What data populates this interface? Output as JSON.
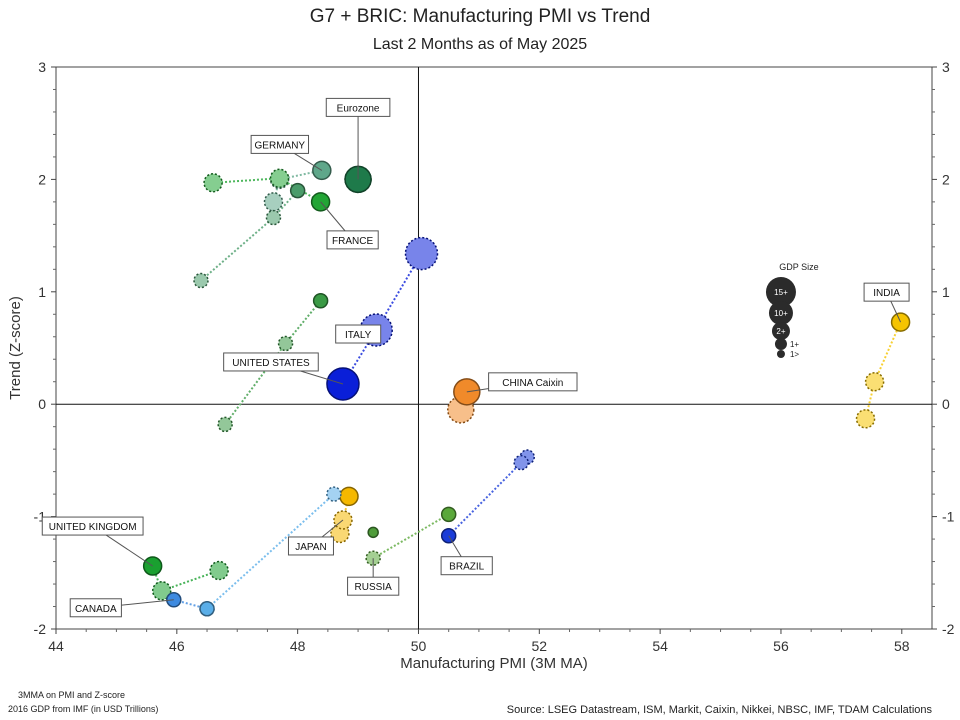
{
  "header": {
    "title": "G7 + BRIC: Manufacturing PMI vs Trend",
    "subtitle": "Last 2 Months as of May 2025"
  },
  "footer": {
    "note1": "3MMA on PMI and Z-score",
    "note2": "2016 GDP from IMF (in USD Trillions)",
    "source": "Source: LSEG Datastream, ISM, Markit, Caixin, Nikkei, NBSC, IMF, TDAM Calculations"
  },
  "chart_data": {
    "type": "scatter",
    "title": "G7 + BRIC: Manufacturing PMI vs Trend",
    "subtitle": "Last 2 Months as of May 2025",
    "xlabel": "Manufacturing PMI (3M MA)",
    "ylabel": "Trend (Z-score)",
    "xlim": [
      44,
      58.5
    ],
    "ylim": [
      -2,
      3
    ],
    "xticks": [
      44,
      46,
      48,
      50,
      52,
      54,
      56,
      58
    ],
    "yticks": [
      -2,
      -1,
      0,
      1,
      2,
      3
    ],
    "reference_lines": {
      "x": 50,
      "y": 0
    },
    "grid": false,
    "size_legend": {
      "title": "GDP Size",
      "entries": [
        "15+",
        "10+",
        "2+",
        "1+",
        "1>"
      ]
    },
    "series": [
      {
        "name": "Eurozone",
        "color": "#1e7a4a",
        "size": "10+",
        "points": [
          [
            49.0,
            2.0
          ],
          [
            49.0,
            2.0
          ]
        ]
      },
      {
        "name": "GERMANY",
        "color": "#5fa78a",
        "size": "2+",
        "points": [
          [
            47.6,
            1.8
          ],
          [
            47.7,
            2.0
          ],
          [
            48.4,
            2.08
          ]
        ]
      },
      {
        "name": "FRANCE",
        "color": "#22a535",
        "size": "2+",
        "points": [
          [
            46.6,
            1.97
          ],
          [
            47.7,
            2.01
          ],
          [
            48.38,
            1.8
          ]
        ]
      },
      {
        "name": "",
        "color": "#4a9c6a",
        "size": "1+",
        "points": [
          [
            46.4,
            1.1
          ],
          [
            47.6,
            1.66
          ],
          [
            48.0,
            1.9
          ]
        ]
      },
      {
        "name": "ITALY",
        "color": "#3a9a45",
        "size": "1+",
        "points": [
          [
            46.8,
            -0.18
          ],
          [
            47.8,
            0.54
          ],
          [
            48.38,
            0.92
          ]
        ]
      },
      {
        "name": "UNITED STATES",
        "color": "#0a1fd8",
        "size": "15+",
        "points": [
          [
            50.05,
            1.34
          ],
          [
            49.3,
            0.66
          ],
          [
            48.75,
            0.18
          ]
        ]
      },
      {
        "name": "CHINA Caixin",
        "color": "#f08a2a",
        "size": "10+",
        "points": [
          [
            50.7,
            -0.05
          ],
          [
            50.8,
            0.11
          ]
        ]
      },
      {
        "name": "INDIA",
        "color": "#f5c400",
        "size": "2+",
        "points": [
          [
            57.4,
            -0.13
          ],
          [
            57.55,
            0.2
          ],
          [
            57.98,
            0.73
          ]
        ]
      },
      {
        "name": "UNITED KINGDOM",
        "color": "#1aa030",
        "size": "2+",
        "points": [
          [
            46.7,
            -1.48
          ],
          [
            45.75,
            -1.66
          ],
          [
            45.6,
            -1.44
          ]
        ]
      },
      {
        "name": "CANADA",
        "color": "#3d8ae0",
        "size": "1+",
        "points": [
          [
            46.5,
            -1.82
          ],
          [
            45.95,
            -1.74
          ]
        ]
      },
      {
        "name": "JAPAN",
        "color": "#f5b800",
        "size": "2+",
        "points": [
          [
            48.7,
            -1.15
          ],
          [
            48.75,
            -1.03
          ],
          [
            48.85,
            -0.82
          ]
        ]
      },
      {
        "name": "",
        "color": "#5aaee8",
        "size": "1+",
        "points": [
          [
            48.6,
            -0.8
          ],
          [
            46.5,
            -1.82
          ]
        ]
      },
      {
        "name": "RUSSIA",
        "color": "#5aa83a",
        "size": "1+",
        "points": [
          [
            49.25,
            -1.37
          ],
          [
            50.5,
            -0.98
          ]
        ]
      },
      {
        "name": "",
        "color": "#4f9c3a",
        "size": "1>",
        "points": [
          [
            49.25,
            -1.14
          ]
        ]
      },
      {
        "name": "BRAZIL",
        "color": "#1a3cd8",
        "size": "1+",
        "points": [
          [
            51.8,
            -0.47
          ],
          [
            51.7,
            -0.52
          ],
          [
            50.5,
            -1.17
          ]
        ]
      }
    ],
    "labels": [
      {
        "text": "Eurozone",
        "point": [
          49.0,
          2.0
        ]
      },
      {
        "text": "GERMANY",
        "point": [
          48.4,
          2.08
        ]
      },
      {
        "text": "FRANCE",
        "point": [
          48.38,
          1.8
        ]
      },
      {
        "text": "ITALY",
        "point": [
          49.3,
          0.66
        ]
      },
      {
        "text": "UNITED STATES",
        "point": [
          48.75,
          0.18
        ]
      },
      {
        "text": "CHINA Caixin",
        "point": [
          50.8,
          0.11
        ]
      },
      {
        "text": "INDIA",
        "point": [
          57.98,
          0.73
        ]
      },
      {
        "text": "UNITED KINGDOM",
        "point": [
          45.6,
          -1.44
        ]
      },
      {
        "text": "CANADA",
        "point": [
          45.95,
          -1.74
        ]
      },
      {
        "text": "JAPAN",
        "point": [
          48.75,
          -1.03
        ]
      },
      {
        "text": "RUSSIA",
        "point": [
          49.25,
          -1.37
        ]
      },
      {
        "text": "BRAZIL",
        "point": [
          50.5,
          -1.17
        ]
      }
    ]
  }
}
